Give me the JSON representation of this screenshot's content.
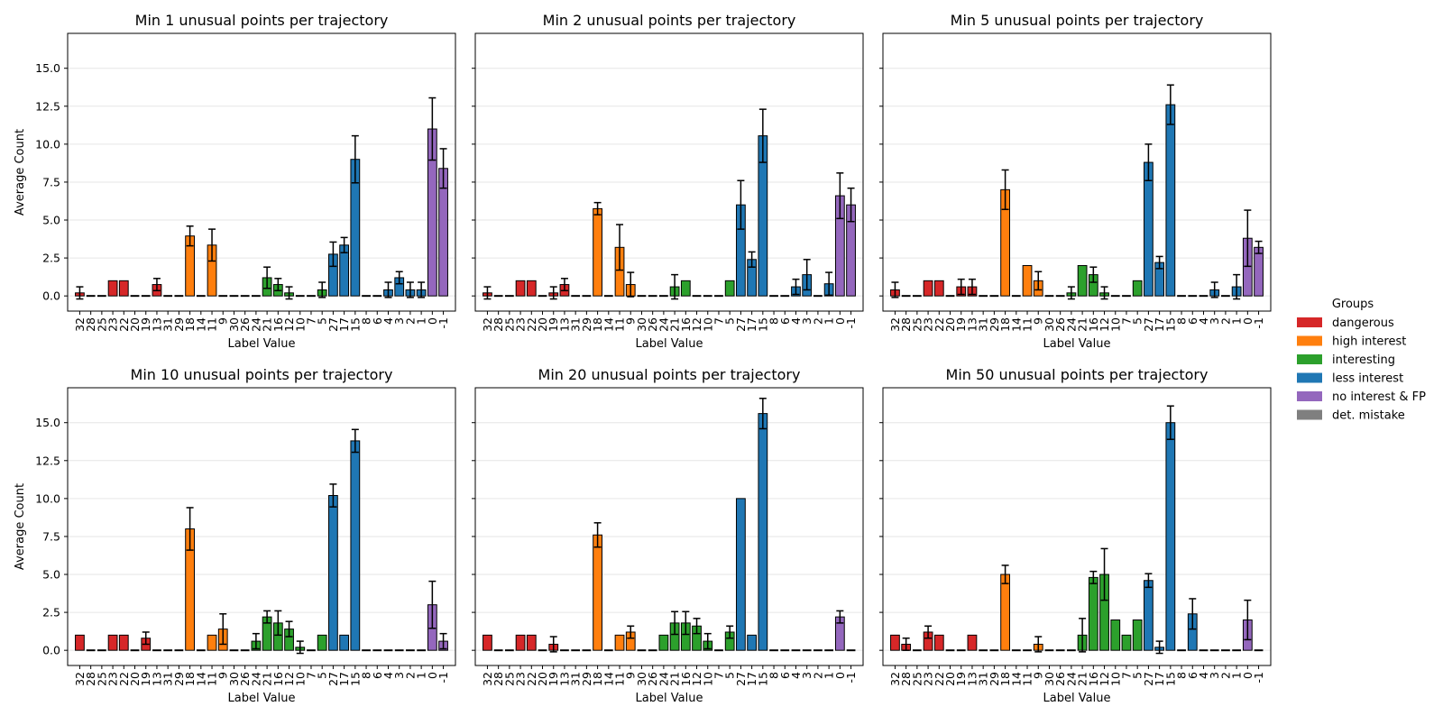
{
  "colors": {
    "dangerous": "#d62728",
    "high interest": "#ff7f0e",
    "interesting": "#2ca02c",
    "less interest": "#1f77b4",
    "no interest & FP": "#9467bd",
    "det. mistake": "#7f7f7f"
  },
  "legend": {
    "title": "Groups",
    "items": [
      "dangerous",
      "high interest",
      "interesting",
      "less interest",
      "no interest & FP",
      "det. mistake"
    ]
  },
  "chart_data": [
    {
      "type": "bar",
      "title": "Min 1 unusual points per trajectory",
      "xlabel": "Label Value",
      "ylabel": "Average Count",
      "ylim": [
        -1,
        17.3
      ],
      "yticks": [
        "0.0",
        "2.5",
        "5.0",
        "7.5",
        "10.0",
        "12.5",
        "15.0"
      ],
      "grid": "horizontal",
      "categories": [
        "32",
        "28",
        "25",
        "23",
        "22",
        "20",
        "19",
        "13",
        "31",
        "29",
        "18",
        "14",
        "11",
        "9",
        "30",
        "26",
        "24",
        "21",
        "16",
        "12",
        "10",
        "7",
        "5",
        "27",
        "17",
        "15",
        "8",
        "6",
        "4",
        "3",
        "2",
        "1",
        "0",
        "-1"
      ],
      "groups": [
        "dangerous",
        "dangerous",
        "dangerous",
        "dangerous",
        "dangerous",
        "dangerous",
        "dangerous",
        "dangerous",
        "dangerous",
        "dangerous",
        "high interest",
        "high interest",
        "high interest",
        "high interest",
        "interesting",
        "interesting",
        "interesting",
        "interesting",
        "interesting",
        "interesting",
        "interesting",
        "interesting",
        "interesting",
        "less interest",
        "less interest",
        "less interest",
        "less interest",
        "less interest",
        "less interest",
        "less interest",
        "less interest",
        "less interest",
        "no interest & FP",
        "no interest & FP"
      ],
      "values": [
        0.2,
        0,
        0,
        1.0,
        1.0,
        0,
        0,
        0.75,
        0,
        0,
        3.95,
        0,
        3.35,
        0,
        0,
        0,
        0,
        1.2,
        0.75,
        0.2,
        0,
        0,
        0.4,
        2.75,
        3.35,
        9.0,
        0,
        0,
        0.4,
        1.2,
        0.4,
        0.4,
        11.0,
        8.4
      ],
      "errors": [
        0.4,
        0,
        0,
        0,
        0,
        0,
        0,
        0.4,
        0,
        0,
        0.65,
        0,
        1.05,
        0,
        0,
        0,
        0,
        0.7,
        0.4,
        0.4,
        0,
        0,
        0.5,
        0.8,
        0.5,
        1.55,
        0,
        0,
        0.5,
        0.4,
        0.5,
        0.5,
        2.05,
        1.3
      ]
    },
    {
      "type": "bar",
      "title": "Min 2 unusual points per trajectory",
      "xlabel": "Label Value",
      "ylabel": "",
      "ylim": [
        -1,
        17.3
      ],
      "yticks": [],
      "grid": "horizontal",
      "categories": [
        "32",
        "28",
        "25",
        "23",
        "22",
        "20",
        "19",
        "13",
        "31",
        "29",
        "18",
        "14",
        "11",
        "9",
        "30",
        "26",
        "24",
        "21",
        "16",
        "12",
        "10",
        "7",
        "5",
        "27",
        "17",
        "15",
        "8",
        "6",
        "4",
        "3",
        "2",
        "1",
        "0",
        "-1"
      ],
      "groups": [
        "dangerous",
        "dangerous",
        "dangerous",
        "dangerous",
        "dangerous",
        "dangerous",
        "dangerous",
        "dangerous",
        "dangerous",
        "dangerous",
        "high interest",
        "high interest",
        "high interest",
        "high interest",
        "interesting",
        "interesting",
        "interesting",
        "interesting",
        "interesting",
        "interesting",
        "interesting",
        "interesting",
        "interesting",
        "less interest",
        "less interest",
        "less interest",
        "less interest",
        "less interest",
        "less interest",
        "less interest",
        "less interest",
        "less interest",
        "no interest & FP",
        "no interest & FP"
      ],
      "values": [
        0.2,
        0,
        0,
        1.0,
        1.0,
        0,
        0.2,
        0.75,
        0,
        0,
        5.75,
        0,
        3.2,
        0.75,
        0,
        0,
        0,
        0.6,
        1.0,
        0,
        0,
        0,
        1.0,
        6.0,
        2.4,
        10.55,
        0,
        0,
        0.6,
        1.4,
        0,
        0.8,
        6.6,
        6.0
      ],
      "errors": [
        0.4,
        0,
        0,
        0,
        0,
        0,
        0.4,
        0.4,
        0,
        0,
        0.4,
        0,
        1.5,
        0.8,
        0,
        0,
        0,
        0.8,
        0,
        0,
        0,
        0,
        0,
        1.6,
        0.5,
        1.75,
        0,
        0,
        0.5,
        1.0,
        0,
        0.75,
        1.5,
        1.1
      ]
    },
    {
      "type": "bar",
      "title": "Min 5 unusual points per trajectory",
      "xlabel": "Label Value",
      "ylabel": "",
      "ylim": [
        -1,
        17.3
      ],
      "yticks": [],
      "grid": "horizontal",
      "categories": [
        "32",
        "28",
        "25",
        "23",
        "22",
        "20",
        "19",
        "13",
        "31",
        "29",
        "18",
        "14",
        "11",
        "9",
        "30",
        "26",
        "24",
        "21",
        "16",
        "12",
        "10",
        "7",
        "5",
        "27",
        "17",
        "15",
        "8",
        "6",
        "4",
        "3",
        "2",
        "1",
        "0",
        "-1"
      ],
      "groups": [
        "dangerous",
        "dangerous",
        "dangerous",
        "dangerous",
        "dangerous",
        "dangerous",
        "dangerous",
        "dangerous",
        "dangerous",
        "dangerous",
        "high interest",
        "high interest",
        "high interest",
        "high interest",
        "interesting",
        "interesting",
        "interesting",
        "interesting",
        "interesting",
        "interesting",
        "interesting",
        "interesting",
        "interesting",
        "less interest",
        "less interest",
        "less interest",
        "less interest",
        "less interest",
        "less interest",
        "less interest",
        "less interest",
        "less interest",
        "no interest & FP",
        "no interest & FP"
      ],
      "values": [
        0.4,
        0,
        0,
        1.0,
        1.0,
        0,
        0.6,
        0.6,
        0,
        0,
        7.0,
        0,
        2.0,
        1.0,
        0,
        0,
        0.2,
        2.0,
        1.4,
        0.2,
        0,
        0,
        1.0,
        8.8,
        2.2,
        12.6,
        0,
        0,
        0,
        0.4,
        0,
        0.6,
        3.8,
        3.2
      ],
      "errors": [
        0.5,
        0,
        0,
        0,
        0,
        0,
        0.5,
        0.5,
        0,
        0,
        1.3,
        0,
        0,
        0.6,
        0,
        0,
        0.4,
        0,
        0.5,
        0.4,
        0,
        0,
        0,
        1.2,
        0.4,
        1.3,
        0,
        0,
        0,
        0.5,
        0,
        0.8,
        1.85,
        0.4
      ]
    },
    {
      "type": "bar",
      "title": "Min 10 unusual points per trajectory",
      "xlabel": "Label Value",
      "ylabel": "Average Count",
      "ylim": [
        -1,
        17.3
      ],
      "yticks": [
        "0.0",
        "2.5",
        "5.0",
        "7.5",
        "10.0",
        "12.5",
        "15.0"
      ],
      "grid": "horizontal",
      "categories": [
        "32",
        "28",
        "25",
        "23",
        "22",
        "20",
        "19",
        "13",
        "31",
        "29",
        "18",
        "14",
        "11",
        "9",
        "30",
        "26",
        "24",
        "21",
        "16",
        "12",
        "10",
        "7",
        "5",
        "27",
        "17",
        "15",
        "8",
        "6",
        "4",
        "3",
        "2",
        "1",
        "0",
        "-1"
      ],
      "groups": [
        "dangerous",
        "dangerous",
        "dangerous",
        "dangerous",
        "dangerous",
        "dangerous",
        "dangerous",
        "dangerous",
        "dangerous",
        "dangerous",
        "high interest",
        "high interest",
        "high interest",
        "high interest",
        "interesting",
        "interesting",
        "interesting",
        "interesting",
        "interesting",
        "interesting",
        "interesting",
        "interesting",
        "interesting",
        "less interest",
        "less interest",
        "less interest",
        "less interest",
        "less interest",
        "less interest",
        "less interest",
        "less interest",
        "less interest",
        "no interest & FP",
        "no interest & FP"
      ],
      "values": [
        1.0,
        0,
        0,
        1.0,
        1.0,
        0,
        0.8,
        0,
        0,
        0,
        8.0,
        0,
        1.0,
        1.4,
        0,
        0,
        0.6,
        2.2,
        1.8,
        1.4,
        0.2,
        0,
        1.0,
        10.2,
        1.0,
        13.8,
        0,
        0,
        0,
        0,
        0,
        0,
        3.0,
        0.6
      ],
      "errors": [
        0,
        0,
        0,
        0,
        0,
        0,
        0.4,
        0,
        0,
        0,
        1.4,
        0,
        0,
        1.0,
        0,
        0,
        0.5,
        0.4,
        0.8,
        0.5,
        0.4,
        0,
        0,
        0.75,
        0,
        0.75,
        0,
        0,
        0,
        0,
        0,
        0,
        1.55,
        0.5
      ]
    },
    {
      "type": "bar",
      "title": "Min 20 unusual points per trajectory",
      "xlabel": "Label Value",
      "ylabel": "",
      "ylim": [
        -1,
        17.3
      ],
      "yticks": [],
      "grid": "horizontal",
      "categories": [
        "32",
        "28",
        "25",
        "23",
        "22",
        "20",
        "19",
        "13",
        "31",
        "29",
        "18",
        "14",
        "11",
        "9",
        "30",
        "26",
        "24",
        "21",
        "16",
        "12",
        "10",
        "7",
        "5",
        "27",
        "17",
        "15",
        "8",
        "6",
        "4",
        "3",
        "2",
        "1",
        "0",
        "-1"
      ],
      "groups": [
        "dangerous",
        "dangerous",
        "dangerous",
        "dangerous",
        "dangerous",
        "dangerous",
        "dangerous",
        "dangerous",
        "dangerous",
        "dangerous",
        "high interest",
        "high interest",
        "high interest",
        "high interest",
        "interesting",
        "interesting",
        "interesting",
        "interesting",
        "interesting",
        "interesting",
        "interesting",
        "interesting",
        "interesting",
        "less interest",
        "less interest",
        "less interest",
        "less interest",
        "less interest",
        "less interest",
        "less interest",
        "less interest",
        "less interest",
        "no interest & FP",
        "no interest & FP"
      ],
      "values": [
        1.0,
        0,
        0,
        1.0,
        1.0,
        0,
        0.4,
        0,
        0,
        0,
        7.6,
        0,
        1.0,
        1.2,
        0,
        0,
        1.0,
        1.8,
        1.8,
        1.6,
        0.6,
        0,
        1.2,
        10.0,
        1.0,
        15.6,
        0,
        0,
        0,
        0,
        0,
        0,
        2.2,
        0
      ],
      "errors": [
        0,
        0,
        0,
        0,
        0,
        0,
        0.5,
        0,
        0,
        0,
        0.8,
        0,
        0,
        0.4,
        0,
        0,
        0,
        0.75,
        0.75,
        0.5,
        0.5,
        0,
        0.4,
        0,
        0,
        1.0,
        0,
        0,
        0,
        0,
        0,
        0,
        0.4,
        0
      ]
    },
    {
      "type": "bar",
      "title": "Min 50 unusual points per trajectory",
      "xlabel": "Label Value",
      "ylabel": "",
      "ylim": [
        -1,
        17.3
      ],
      "yticks": [],
      "grid": "horizontal",
      "categories": [
        "32",
        "28",
        "25",
        "23",
        "22",
        "20",
        "19",
        "13",
        "31",
        "29",
        "18",
        "14",
        "11",
        "9",
        "30",
        "26",
        "24",
        "21",
        "16",
        "12",
        "10",
        "7",
        "5",
        "27",
        "17",
        "15",
        "8",
        "6",
        "4",
        "3",
        "2",
        "1",
        "0",
        "-1"
      ],
      "groups": [
        "dangerous",
        "dangerous",
        "dangerous",
        "dangerous",
        "dangerous",
        "dangerous",
        "dangerous",
        "dangerous",
        "dangerous",
        "dangerous",
        "high interest",
        "high interest",
        "high interest",
        "high interest",
        "interesting",
        "interesting",
        "interesting",
        "interesting",
        "interesting",
        "interesting",
        "interesting",
        "interesting",
        "interesting",
        "less interest",
        "less interest",
        "less interest",
        "less interest",
        "less interest",
        "less interest",
        "less interest",
        "less interest",
        "less interest",
        "no interest & FP",
        "no interest & FP"
      ],
      "values": [
        1.0,
        0.4,
        0,
        1.2,
        1.0,
        0,
        0,
        1.0,
        0,
        0,
        5.0,
        0,
        0,
        0.4,
        0,
        0,
        0,
        1.0,
        4.8,
        5.0,
        2.0,
        1.0,
        2.0,
        4.6,
        0.2,
        15.0,
        0,
        2.4,
        0,
        0,
        0,
        0,
        2.0,
        0
      ],
      "errors": [
        0,
        0.4,
        0,
        0.4,
        0,
        0,
        0,
        0,
        0,
        0,
        0.6,
        0,
        0,
        0.5,
        0,
        0,
        0,
        1.1,
        0.4,
        1.7,
        0,
        0,
        0,
        0.45,
        0.4,
        1.1,
        0,
        1.0,
        0,
        0,
        0,
        0,
        1.3,
        0
      ]
    }
  ]
}
